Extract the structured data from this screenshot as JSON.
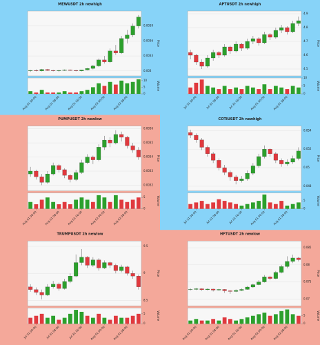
{
  "chart_data": [
    {
      "type": "candlestick",
      "title": "MEWUSDT 2h newhigh",
      "background": "#87d3f8",
      "up_color": "#2ca02c",
      "down_color": "#e0393e",
      "ylabel": "Price",
      "vlabel": "Volume",
      "categories": [
        null,
        "Aug 01 00:00",
        null,
        null,
        null,
        "Aug 01 08:00",
        null,
        null,
        null,
        "Aug 01 16:00",
        null,
        null,
        null,
        "Aug 02 00:00",
        null,
        null,
        null,
        "Aug 02 08:00",
        null,
        null
      ],
      "candles": [
        [
          0.003,
          0.00302,
          0.00298,
          0.00301
        ],
        [
          0.00301,
          0.00303,
          0.00299,
          0.003
        ],
        [
          0.003,
          0.00304,
          0.00299,
          0.00303
        ],
        [
          0.00303,
          0.00304,
          0.003,
          0.00301
        ],
        [
          0.00301,
          0.00302,
          0.00299,
          0.003
        ],
        [
          0.003,
          0.00302,
          0.00298,
          0.00301
        ],
        [
          0.00301,
          0.00303,
          0.003,
          0.00302
        ],
        [
          0.00302,
          0.00303,
          0.003,
          0.00301
        ],
        [
          0.00301,
          0.00302,
          0.00299,
          0.003
        ],
        [
          0.003,
          0.00302,
          0.00299,
          0.00302
        ],
        [
          0.00302,
          0.00306,
          0.00301,
          0.00305
        ],
        [
          0.00305,
          0.00312,
          0.00303,
          0.0031
        ],
        [
          0.0031,
          0.00325,
          0.00308,
          0.00322
        ],
        [
          0.00322,
          0.0033,
          0.00315,
          0.00318
        ],
        [
          0.00318,
          0.00345,
          0.00316,
          0.0034
        ],
        [
          0.0034,
          0.00352,
          0.00332,
          0.00336
        ],
        [
          0.00336,
          0.0037,
          0.00334,
          0.00365
        ],
        [
          0.00365,
          0.00382,
          0.00355,
          0.00372
        ],
        [
          0.00372,
          0.00395,
          0.00368,
          0.0039
        ],
        [
          0.0039,
          0.00412,
          0.00385,
          0.00408
        ]
      ],
      "volumes": [
        2,
        1,
        3,
        1,
        1,
        1,
        2,
        1,
        1,
        2,
        3,
        5,
        8,
        6,
        9,
        7,
        10,
        8,
        9,
        11
      ],
      "ylim": [
        0.0029,
        0.0042
      ],
      "yticks": [
        0.003,
        0.0033,
        0.0036,
        0.0039
      ],
      "vlim": [
        0,
        12
      ],
      "vticks": [
        0,
        5,
        10
      ],
      "grid": true
    },
    {
      "type": "candlestick",
      "title": "APTUSDT 2h newhigh",
      "background": "#87d3f8",
      "up_color": "#2ca02c",
      "down_color": "#e0393e",
      "ylabel": "Price",
      "vlabel": "Volume",
      "categories": [
        null,
        "Jul 31 00:00",
        null,
        null,
        null,
        "Jul 31 08:00",
        null,
        null,
        null,
        "Jul 31 16:00",
        null,
        null,
        null,
        "Aug 01 00:00",
        null,
        null,
        null,
        "Aug 01 08:00",
        null,
        null
      ],
      "candles": [
        [
          4.62,
          4.64,
          4.57,
          4.6
        ],
        [
          4.6,
          4.61,
          4.53,
          4.55
        ],
        [
          4.55,
          4.57,
          4.5,
          4.52
        ],
        [
          4.52,
          4.6,
          4.51,
          4.58
        ],
        [
          4.58,
          4.64,
          4.56,
          4.62
        ],
        [
          4.62,
          4.63,
          4.58,
          4.6
        ],
        [
          4.6,
          4.68,
          4.59,
          4.66
        ],
        [
          4.66,
          4.67,
          4.61,
          4.63
        ],
        [
          4.63,
          4.7,
          4.62,
          4.68
        ],
        [
          4.68,
          4.69,
          4.63,
          4.65
        ],
        [
          4.65,
          4.72,
          4.64,
          4.7
        ],
        [
          4.7,
          4.74,
          4.68,
          4.72
        ],
        [
          4.72,
          4.73,
          4.67,
          4.69
        ],
        [
          4.69,
          4.77,
          4.68,
          4.75
        ],
        [
          4.75,
          4.76,
          4.71,
          4.73
        ],
        [
          4.73,
          4.8,
          4.72,
          4.78
        ],
        [
          4.78,
          4.82,
          4.76,
          4.8
        ],
        [
          4.8,
          4.81,
          4.75,
          4.77
        ],
        [
          4.77,
          4.85,
          4.76,
          4.83
        ],
        [
          4.83,
          4.88,
          4.81,
          4.85
        ]
      ],
      "volumes": [
        4,
        7,
        9,
        5,
        4,
        3,
        5,
        3,
        4,
        3,
        5,
        4,
        3,
        6,
        3,
        5,
        4,
        3,
        5,
        4
      ],
      "ylim": [
        4.45,
        4.92
      ],
      "yticks": [
        4.5,
        4.6,
        4.7,
        4.8,
        4.9
      ],
      "vlim": [
        0,
        10
      ],
      "vticks": [
        0,
        5,
        10
      ],
      "grid": true
    },
    {
      "type": "candlestick",
      "title": "PUMPUSDT 2h newlow",
      "background": "#f4a89a",
      "up_color": "#2ca02c",
      "down_color": "#e0393e",
      "ylabel": "Price",
      "vlabel": "Volume",
      "categories": [
        null,
        "Aug 01 00:00",
        null,
        null,
        null,
        "Aug 01 08:00",
        null,
        null,
        null,
        "Aug 01 16:00",
        null,
        null,
        null,
        "Aug 02 00:00",
        null,
        null,
        null,
        "Aug 02 08:00",
        null,
        null
      ],
      "candles": [
        [
          0.00328,
          0.00333,
          0.00326,
          0.0033
        ],
        [
          0.0033,
          0.00331,
          0.00324,
          0.00326
        ],
        [
          0.00326,
          0.00328,
          0.0032,
          0.00322
        ],
        [
          0.00322,
          0.0033,
          0.00321,
          0.00328
        ],
        [
          0.00328,
          0.00336,
          0.00327,
          0.00334
        ],
        [
          0.00334,
          0.00335,
          0.00329,
          0.00331
        ],
        [
          0.00331,
          0.00332,
          0.00325,
          0.00327
        ],
        [
          0.00327,
          0.00328,
          0.00322,
          0.00324
        ],
        [
          0.00324,
          0.00331,
          0.00323,
          0.00329
        ],
        [
          0.00329,
          0.00338,
          0.00328,
          0.00336
        ],
        [
          0.00336,
          0.00342,
          0.00335,
          0.0034
        ],
        [
          0.0034,
          0.00341,
          0.00335,
          0.00338
        ],
        [
          0.00338,
          0.00349,
          0.00337,
          0.00347
        ],
        [
          0.00347,
          0.00355,
          0.00345,
          0.00352
        ],
        [
          0.00352,
          0.00354,
          0.00347,
          0.0035
        ],
        [
          0.0035,
          0.00359,
          0.00349,
          0.00356
        ],
        [
          0.00356,
          0.00358,
          0.00351,
          0.00354
        ],
        [
          0.00354,
          0.00355,
          0.00346,
          0.00348
        ],
        [
          0.00348,
          0.0035,
          0.00343,
          0.00345
        ],
        [
          0.00345,
          0.00347,
          0.00338,
          0.0034
        ]
      ],
      "volumes": [
        3,
        2,
        4,
        5,
        3,
        2,
        3,
        2,
        4,
        5,
        4,
        3,
        6,
        5,
        3,
        6,
        4,
        3,
        4,
        5
      ],
      "ylim": [
        0.00316,
        0.00362
      ],
      "yticks": [
        0.0032,
        0.0033,
        0.0034,
        0.0035,
        0.0036
      ],
      "vlim": [
        0,
        7
      ],
      "vticks": [
        0,
        5
      ],
      "grid": true
    },
    {
      "type": "candlestick",
      "title": "COTIUSDT 2h newhigh",
      "background": "#87d3f8",
      "up_color": "#2ca02c",
      "down_color": "#e0393e",
      "ylabel": "Price",
      "vlabel": "Volume",
      "categories": [
        null,
        "Jul 31 00:00",
        null,
        null,
        null,
        "Jul 31 08:00",
        null,
        null,
        null,
        "Jul 31 16:00",
        null,
        null,
        null,
        "Aug 01 00:00",
        null,
        null,
        null,
        "Aug 01 08:00",
        null,
        null
      ],
      "candles": [
        [
          0.0538,
          0.0541,
          0.0532,
          0.0535
        ],
        [
          0.0535,
          0.0537,
          0.0527,
          0.053
        ],
        [
          0.053,
          0.0532,
          0.0519,
          0.0522
        ],
        [
          0.0522,
          0.0524,
          0.0512,
          0.0515
        ],
        [
          0.0515,
          0.0517,
          0.0505,
          0.0508
        ],
        [
          0.0508,
          0.051,
          0.0497,
          0.05
        ],
        [
          0.05,
          0.0503,
          0.0492,
          0.0495
        ],
        [
          0.0495,
          0.0497,
          0.0486,
          0.049
        ],
        [
          0.049,
          0.0492,
          0.0482,
          0.0486
        ],
        [
          0.0486,
          0.0491,
          0.0484,
          0.0488
        ],
        [
          0.0488,
          0.0497,
          0.0486,
          0.0494
        ],
        [
          0.0494,
          0.0505,
          0.0492,
          0.0502
        ],
        [
          0.0502,
          0.0515,
          0.05,
          0.0512
        ],
        [
          0.0512,
          0.0524,
          0.051,
          0.052
        ],
        [
          0.052,
          0.0521,
          0.0512,
          0.0515
        ],
        [
          0.0515,
          0.0517,
          0.0505,
          0.0508
        ],
        [
          0.0508,
          0.051,
          0.0501,
          0.0504
        ],
        [
          0.0504,
          0.0509,
          0.0502,
          0.0506
        ],
        [
          0.0506,
          0.0513,
          0.0504,
          0.051
        ],
        [
          0.051,
          0.0522,
          0.0508,
          0.0518
        ]
      ],
      "volumes": [
        3,
        4,
        5,
        3,
        4,
        6,
        5,
        4,
        3,
        2,
        3,
        4,
        5,
        9,
        4,
        3,
        5,
        2,
        3,
        4
      ],
      "ylim": [
        0.0475,
        0.0545
      ],
      "yticks": [
        0.048,
        0.05,
        0.052,
        0.054
      ],
      "vlim": [
        0,
        10
      ],
      "vticks": [
        0,
        5
      ],
      "grid": true
    },
    {
      "type": "candlestick",
      "title": "TRUMPUSDT 2h newlow",
      "background": "#f4a89a",
      "up_color": "#2ca02c",
      "down_color": "#e0393e",
      "ylabel": "Price",
      "vlabel": "Volume",
      "categories": [
        null,
        "Jul 31 00:00",
        null,
        null,
        null,
        "Jul 31 08:00",
        null,
        null,
        null,
        "Jul 31 16:00",
        null,
        null,
        null,
        "Aug 01 00:00",
        null,
        null,
        null,
        "Aug 01 08:00",
        null,
        null
      ],
      "candles": [
        [
          8.75,
          8.8,
          8.66,
          8.7
        ],
        [
          8.7,
          8.74,
          8.6,
          8.65
        ],
        [
          8.65,
          8.7,
          8.52,
          8.6
        ],
        [
          8.6,
          8.8,
          8.58,
          8.75
        ],
        [
          8.75,
          8.86,
          8.72,
          8.8
        ],
        [
          8.8,
          8.83,
          8.68,
          8.72
        ],
        [
          8.72,
          8.9,
          8.7,
          8.85
        ],
        [
          8.85,
          9.0,
          8.82,
          8.95
        ],
        [
          8.95,
          9.35,
          8.93,
          9.2
        ],
        [
          9.2,
          9.45,
          9.15,
          9.3
        ],
        [
          9.3,
          9.32,
          9.1,
          9.15
        ],
        [
          9.15,
          9.3,
          9.12,
          9.25
        ],
        [
          9.25,
          9.28,
          9.05,
          9.1
        ],
        [
          9.1,
          9.24,
          9.08,
          9.2
        ],
        [
          9.2,
          9.22,
          9.1,
          9.15
        ],
        [
          9.15,
          9.18,
          9.0,
          9.05
        ],
        [
          9.05,
          9.16,
          9.02,
          9.12
        ],
        [
          9.12,
          9.14,
          8.96,
          9.0
        ],
        [
          9.0,
          9.05,
          8.9,
          8.95
        ],
        [
          8.95,
          8.98,
          8.7,
          8.75
        ]
      ],
      "volumes": [
        3,
        4,
        5,
        3,
        4,
        2,
        3,
        5,
        7,
        6,
        4,
        3,
        5,
        3,
        2,
        4,
        3,
        3,
        4,
        5
      ],
      "ylim": [
        8.4,
        9.6
      ],
      "yticks": [
        8.5,
        9.0,
        9.5
      ],
      "vlim": [
        0,
        8
      ],
      "vticks": [
        0,
        5
      ],
      "grid": true
    },
    {
      "type": "candlestick",
      "title": "HFTUSDT 2h newlow",
      "background": "#f4a89a",
      "up_color": "#2ca02c",
      "down_color": "#e0393e",
      "ylabel": "Price",
      "vlabel": "Volume",
      "categories": [
        null,
        "Aug 01 00:00",
        null,
        null,
        null,
        "Aug 01 08:00",
        null,
        null,
        null,
        "Aug 01 16:00",
        null,
        null,
        null,
        "Aug 02 00:00",
        null,
        null,
        null,
        "Aug 02 08:00",
        null,
        null
      ],
      "candles": [
        [
          0.0727,
          0.0731,
          0.0725,
          0.0728
        ],
        [
          0.0728,
          0.0732,
          0.0726,
          0.073
        ],
        [
          0.073,
          0.0731,
          0.0724,
          0.0727
        ],
        [
          0.0727,
          0.0731,
          0.0725,
          0.0729
        ],
        [
          0.0729,
          0.073,
          0.0722,
          0.0726
        ],
        [
          0.0726,
          0.073,
          0.0724,
          0.0728
        ],
        [
          0.0728,
          0.0729,
          0.0718,
          0.0724
        ],
        [
          0.0724,
          0.0726,
          0.0715,
          0.0722
        ],
        [
          0.0722,
          0.0728,
          0.072,
          0.0725
        ],
        [
          0.0725,
          0.0731,
          0.0723,
          0.0728
        ],
        [
          0.0728,
          0.0738,
          0.0727,
          0.0735
        ],
        [
          0.0735,
          0.0745,
          0.0733,
          0.0742
        ],
        [
          0.0742,
          0.0755,
          0.074,
          0.075
        ],
        [
          0.075,
          0.077,
          0.0748,
          0.0765
        ],
        [
          0.0765,
          0.0768,
          0.0755,
          0.076
        ],
        [
          0.076,
          0.0782,
          0.0758,
          0.0778
        ],
        [
          0.0778,
          0.08,
          0.0775,
          0.0795
        ],
        [
          0.0795,
          0.0825,
          0.079,
          0.081
        ],
        [
          0.081,
          0.083,
          0.0805,
          0.082
        ],
        [
          0.082,
          0.0823,
          0.081,
          0.0815
        ]
      ],
      "volumes": [
        2,
        3,
        2,
        2,
        3,
        2,
        4,
        3,
        2,
        3,
        4,
        5,
        6,
        7,
        5,
        6,
        8,
        9,
        6,
        5
      ],
      "ylim": [
        0.068,
        0.087
      ],
      "yticks": [
        0.07,
        0.075,
        0.08,
        0.085
      ],
      "vlim": [
        0,
        10
      ],
      "vticks": [
        0,
        5
      ],
      "grid": true
    }
  ]
}
